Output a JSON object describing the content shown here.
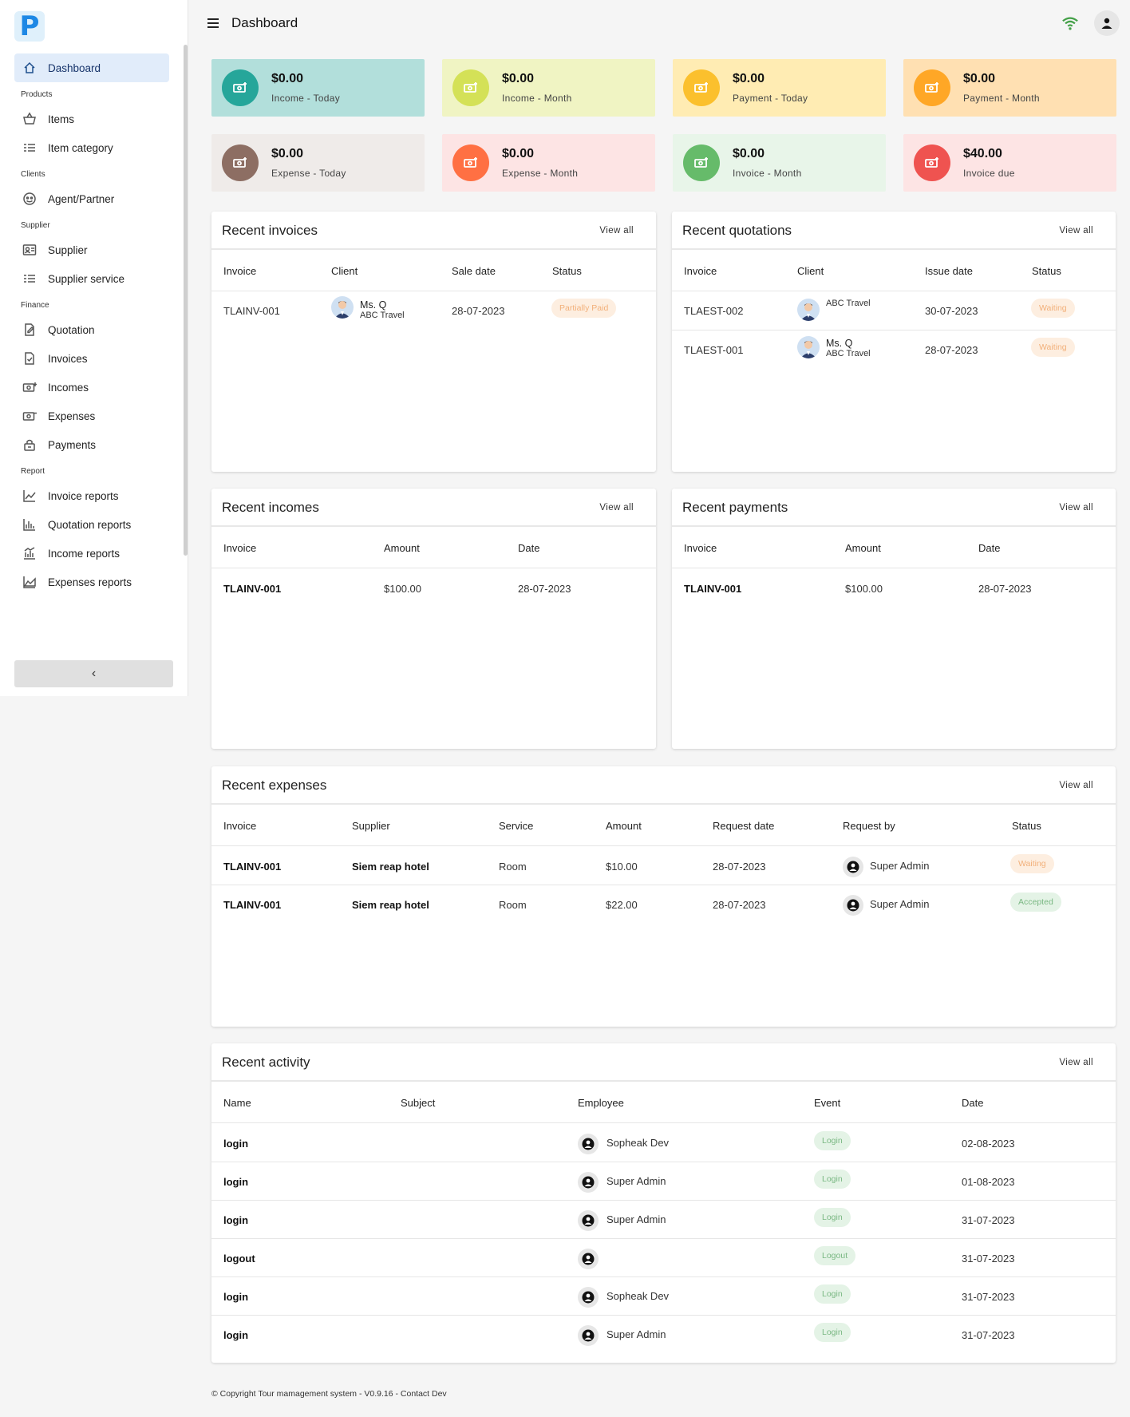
{
  "app": {
    "logo_letter": "P"
  },
  "header": {
    "title": "Dashboard"
  },
  "sidebar": {
    "items": [
      {
        "label": "Dashboard",
        "icon": "home-icon"
      },
      {
        "group": "Products"
      },
      {
        "label": "Items",
        "icon": "basket-icon"
      },
      {
        "label": "Item category",
        "icon": "list-icon"
      },
      {
        "group": "Clients"
      },
      {
        "label": "Agent/Partner",
        "icon": "agent-icon"
      },
      {
        "group": "Supplier"
      },
      {
        "label": "Supplier",
        "icon": "id-card-icon"
      },
      {
        "label": "Supplier service",
        "icon": "list-icon"
      },
      {
        "group": "Finance"
      },
      {
        "label": "Quotation",
        "icon": "document-edit-icon"
      },
      {
        "label": "Invoices",
        "icon": "document-check-icon"
      },
      {
        "label": "Incomes",
        "icon": "money-in-icon"
      },
      {
        "label": "Expenses",
        "icon": "money-out-icon"
      },
      {
        "label": "Payments",
        "icon": "payment-icon"
      },
      {
        "group": "Report"
      },
      {
        "label": "Invoice reports",
        "icon": "line-chart-icon"
      },
      {
        "label": "Quotation reports",
        "icon": "bar-chart-icon"
      },
      {
        "label": "Income reports",
        "icon": "income-chart-icon"
      },
      {
        "label": "Expenses reports",
        "icon": "area-chart-icon"
      }
    ],
    "collapse_label": "‹"
  },
  "stats": [
    {
      "amount": "$0.00",
      "label": "Income - Today",
      "bg": "#b2dfdb",
      "circle": "#26a69a"
    },
    {
      "amount": "$0.00",
      "label": "Income - Month",
      "bg": "#f0f4c3",
      "circle": "#d4e157"
    },
    {
      "amount": "$0.00",
      "label": "Payment - Today",
      "bg": "#ffecb3",
      "circle": "#fbc02d"
    },
    {
      "amount": "$0.00",
      "label": "Payment - Month",
      "bg": "#ffe0b2",
      "circle": "#ffa726"
    },
    {
      "amount": "$0.00",
      "label": "Expense - Today",
      "bg": "#efebe9",
      "circle": "#8d6e63"
    },
    {
      "amount": "$0.00",
      "label": "Expense - Month",
      "bg": "#fde4e4",
      "circle": "#ff7043"
    },
    {
      "amount": "$0.00",
      "label": "Invoice - Month",
      "bg": "#e8f5e9",
      "circle": "#66bb6a"
    },
    {
      "amount": "$40.00",
      "label": "Invoice due",
      "bg": "#fde4e4",
      "circle": "#ef5350"
    }
  ],
  "view_all": "View all",
  "recent_invoices": {
    "title": "Recent invoices",
    "columns": [
      "Invoice",
      "Client",
      "Sale date",
      "Status"
    ],
    "rows": [
      {
        "invoice": "TLAINV-001",
        "client_name": "Ms. Q",
        "client_company": "ABC Travel",
        "date": "28-07-2023",
        "status": "Partially Paid"
      }
    ]
  },
  "recent_quotations": {
    "title": "Recent quotations",
    "columns": [
      "Invoice",
      "Client",
      "Issue date",
      "Status"
    ],
    "rows": [
      {
        "invoice": "TLAEST-002",
        "client_name": "",
        "client_company": "ABC Travel",
        "date": "30-07-2023",
        "status": "Waiting"
      },
      {
        "invoice": "TLAEST-001",
        "client_name": "Ms. Q",
        "client_company": "ABC Travel",
        "date": "28-07-2023",
        "status": "Waiting"
      }
    ]
  },
  "recent_incomes": {
    "title": "Recent incomes",
    "columns": [
      "Invoice",
      "Amount",
      "Date"
    ],
    "rows": [
      {
        "invoice": "TLAINV-001",
        "amount": "$100.00",
        "date": "28-07-2023"
      }
    ]
  },
  "recent_payments": {
    "title": "Recent payments",
    "columns": [
      "Invoice",
      "Amount",
      "Date"
    ],
    "rows": [
      {
        "invoice": "TLAINV-001",
        "amount": "$100.00",
        "date": "28-07-2023"
      }
    ]
  },
  "recent_expenses": {
    "title": "Recent expenses",
    "columns": [
      "Invoice",
      "Supplier",
      "Service",
      "Amount",
      "Request date",
      "Request by",
      "Status"
    ],
    "rows": [
      {
        "invoice": "TLAINV-001",
        "supplier": "Siem reap hotel",
        "service": "Room",
        "amount": "$10.00",
        "date": "28-07-2023",
        "by": "Super Admin",
        "status": "Waiting"
      },
      {
        "invoice": "TLAINV-001",
        "supplier": "Siem reap hotel",
        "service": "Room",
        "amount": "$22.00",
        "date": "28-07-2023",
        "by": "Super Admin",
        "status": "Accepted"
      }
    ]
  },
  "recent_activity": {
    "title": "Recent activity",
    "columns": [
      "Name",
      "Subject",
      "Employee",
      "Event",
      "Date"
    ],
    "rows": [
      {
        "name": "login",
        "subject": "",
        "employee": "Sopheak Dev",
        "event": "Login",
        "date": "02-08-2023"
      },
      {
        "name": "login",
        "subject": "",
        "employee": "Super Admin",
        "event": "Login",
        "date": "01-08-2023"
      },
      {
        "name": "login",
        "subject": "",
        "employee": "Super Admin",
        "event": "Login",
        "date": "31-07-2023"
      },
      {
        "name": "logout",
        "subject": "",
        "employee": "",
        "event": "Logout",
        "date": "31-07-2023"
      },
      {
        "name": "login",
        "subject": "",
        "employee": "Sopheak Dev",
        "event": "Login",
        "date": "31-07-2023"
      },
      {
        "name": "login",
        "subject": "",
        "employee": "Super Admin",
        "event": "Login",
        "date": "31-07-2023"
      }
    ]
  },
  "footer": {
    "copyright": "© Copyright Tour mamagement system - V0.9.16 - ",
    "contact": "Contact Dev"
  }
}
